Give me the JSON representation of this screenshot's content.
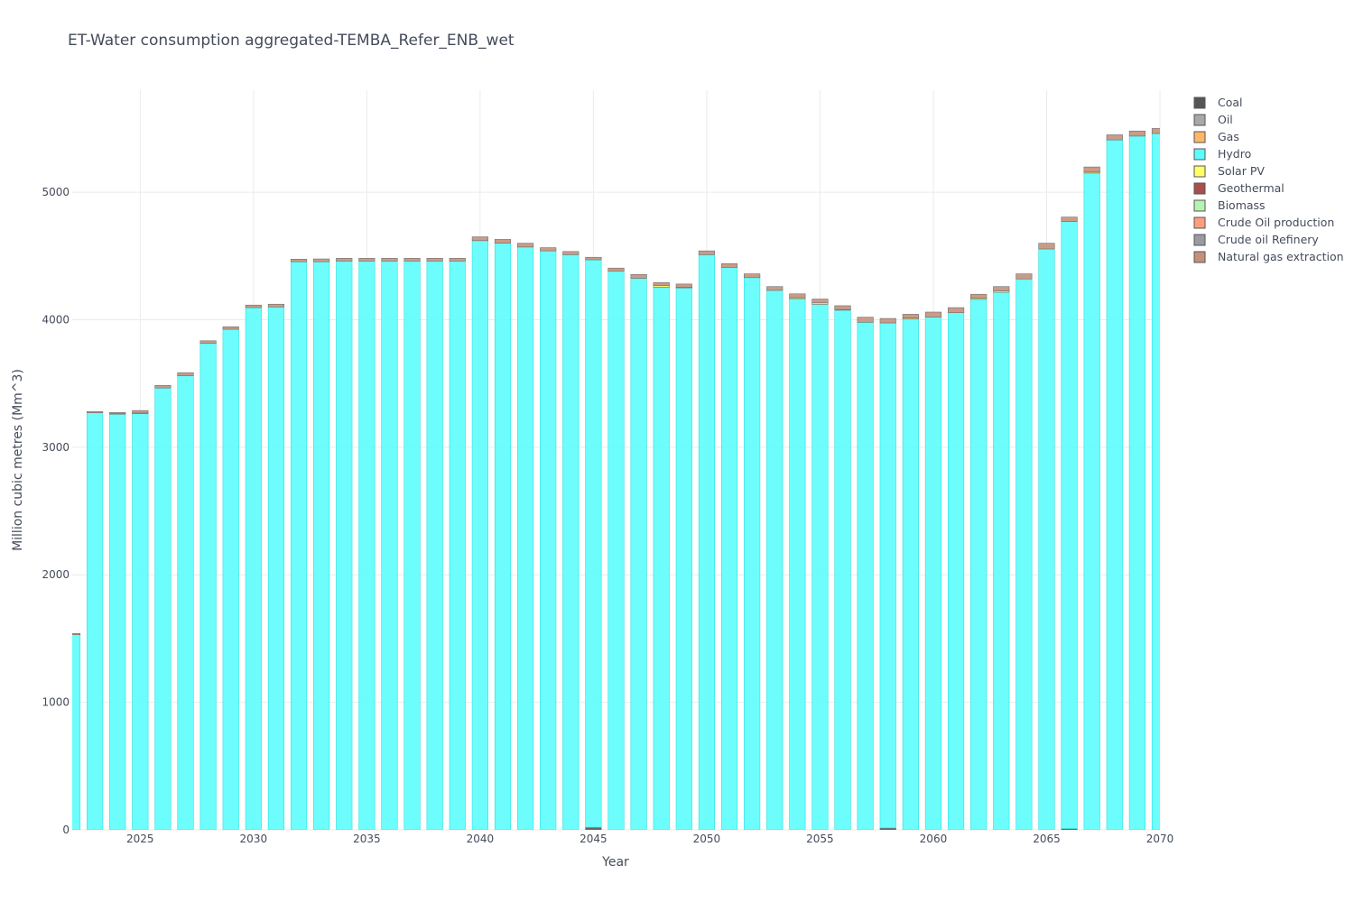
{
  "chart_data": {
    "type": "bar",
    "stacked": true,
    "title": "ET-Water consumption aggregated-TEMBA_Refer_ENB_wet",
    "xlabel": "Year",
    "ylabel": "Million cubic metres (Mm^3)",
    "xlim": [
      2022,
      2070
    ],
    "ylim": [
      0,
      5800
    ],
    "xticks": [
      2025,
      2030,
      2035,
      2040,
      2045,
      2050,
      2055,
      2060,
      2065,
      2070
    ],
    "yticks": [
      0,
      1000,
      2000,
      3000,
      4000,
      5000
    ],
    "grid": true,
    "legend_position": "right",
    "x": [
      2022,
      2023,
      2024,
      2025,
      2026,
      2027,
      2028,
      2029,
      2030,
      2031,
      2032,
      2033,
      2034,
      2035,
      2036,
      2037,
      2038,
      2039,
      2040,
      2041,
      2042,
      2043,
      2044,
      2045,
      2046,
      2047,
      2048,
      2049,
      2050,
      2051,
      2052,
      2053,
      2054,
      2055,
      2056,
      2057,
      2058,
      2059,
      2060,
      2061,
      2062,
      2063,
      2064,
      2065,
      2066,
      2067,
      2068,
      2069,
      2070
    ],
    "series": [
      {
        "name": "Coal",
        "color": "#555555",
        "values": [
          0,
          0,
          0,
          0,
          0,
          0,
          0,
          0,
          0,
          0,
          0,
          0,
          0,
          0,
          0,
          0,
          0,
          0,
          0,
          0,
          0,
          0,
          0,
          20,
          0,
          0,
          0,
          0,
          0,
          0,
          0,
          0,
          0,
          0,
          0,
          0,
          15,
          0,
          0,
          0,
          0,
          0,
          0,
          0,
          10,
          0,
          0,
          0,
          0
        ]
      },
      {
        "name": "Oil",
        "color": "#a8a8a8",
        "values": [
          0,
          0,
          0,
          0,
          0,
          0,
          0,
          0,
          0,
          0,
          0,
          0,
          0,
          0,
          0,
          0,
          0,
          0,
          0,
          0,
          0,
          0,
          0,
          0,
          0,
          0,
          0,
          0,
          0,
          0,
          0,
          0,
          0,
          0,
          0,
          0,
          0,
          0,
          0,
          0,
          0,
          0,
          0,
          0,
          0,
          0,
          0,
          0,
          0
        ]
      },
      {
        "name": "Gas",
        "color": "#ffb766",
        "values": [
          0,
          0,
          0,
          0,
          0,
          0,
          0,
          0,
          0,
          0,
          0,
          0,
          0,
          0,
          0,
          0,
          0,
          0,
          0,
          0,
          0,
          0,
          0,
          0,
          0,
          0,
          0,
          0,
          0,
          0,
          0,
          0,
          0,
          0,
          0,
          0,
          0,
          0,
          0,
          0,
          0,
          0,
          0,
          0,
          0,
          0,
          0,
          0,
          0
        ]
      },
      {
        "name": "Hydro",
        "color": "#5dfdfd",
        "values": [
          1530,
          3270,
          3260,
          3265,
          3465,
          3560,
          3815,
          3925,
          4095,
          4100,
          4455,
          4455,
          4460,
          4460,
          4460,
          4460,
          4460,
          4460,
          4620,
          4600,
          4570,
          4540,
          4510,
          4450,
          4380,
          4325,
          4255,
          4250,
          4510,
          4410,
          4330,
          4230,
          4165,
          4120,
          4075,
          3980,
          3960,
          4005,
          4020,
          4055,
          4160,
          4215,
          4320,
          4555,
          4760,
          5150,
          5410,
          5440,
          5460
        ]
      },
      {
        "name": "Solar PV",
        "color": "#ffff66",
        "values": [
          0,
          0,
          3,
          3,
          0,
          0,
          0,
          0,
          0,
          0,
          0,
          0,
          0,
          0,
          0,
          0,
          0,
          0,
          0,
          0,
          0,
          0,
          0,
          0,
          0,
          0,
          12,
          5,
          0,
          0,
          0,
          0,
          8,
          12,
          5,
          0,
          0,
          8,
          0,
          0,
          10,
          10,
          0,
          0,
          0,
          8,
          0,
          0,
          0
        ]
      },
      {
        "name": "Geothermal",
        "color": "#a94d4d",
        "values": [
          0,
          0,
          0,
          0,
          0,
          0,
          0,
          0,
          0,
          0,
          0,
          0,
          0,
          0,
          0,
          0,
          0,
          0,
          0,
          0,
          0,
          0,
          0,
          0,
          0,
          0,
          0,
          0,
          0,
          0,
          0,
          0,
          0,
          0,
          0,
          0,
          0,
          0,
          0,
          0,
          0,
          0,
          0,
          0,
          0,
          0,
          0,
          0,
          0
        ]
      },
      {
        "name": "Biomass",
        "color": "#b8f2b0",
        "values": [
          0,
          0,
          0,
          0,
          0,
          0,
          0,
          0,
          0,
          0,
          0,
          0,
          0,
          0,
          0,
          0,
          0,
          0,
          0,
          0,
          0,
          0,
          0,
          0,
          0,
          0,
          0,
          0,
          0,
          0,
          0,
          0,
          0,
          0,
          0,
          0,
          0,
          0,
          0,
          0,
          0,
          0,
          0,
          0,
          0,
          0,
          0,
          0,
          0
        ]
      },
      {
        "name": "Crude Oil production",
        "color": "#ff9e7e",
        "values": [
          0,
          0,
          0,
          0,
          0,
          0,
          0,
          0,
          0,
          0,
          0,
          0,
          0,
          0,
          0,
          0,
          0,
          0,
          0,
          0,
          0,
          0,
          0,
          0,
          0,
          0,
          0,
          0,
          0,
          0,
          0,
          0,
          0,
          0,
          0,
          0,
          0,
          0,
          0,
          0,
          0,
          0,
          0,
          0,
          0,
          0,
          0,
          0,
          0
        ]
      },
      {
        "name": "Crude oil Refinery",
        "color": "#9a9aa4",
        "values": [
          0,
          0,
          0,
          0,
          0,
          0,
          0,
          0,
          0,
          0,
          0,
          0,
          0,
          0,
          0,
          0,
          0,
          0,
          0,
          0,
          0,
          0,
          0,
          0,
          0,
          0,
          0,
          0,
          0,
          0,
          0,
          0,
          0,
          0,
          0,
          0,
          0,
          0,
          0,
          0,
          0,
          0,
          0,
          0,
          0,
          0,
          0,
          0,
          0
        ]
      },
      {
        "name": "Natural gas extraction",
        "color": "#c4907a",
        "values": [
          10,
          10,
          10,
          20,
          20,
          25,
          20,
          20,
          20,
          22,
          20,
          22,
          22,
          22,
          22,
          22,
          22,
          22,
          30,
          30,
          30,
          25,
          25,
          20,
          25,
          30,
          25,
          25,
          30,
          30,
          30,
          30,
          30,
          30,
          30,
          40,
          35,
          30,
          40,
          40,
          30,
          35,
          40,
          45,
          35,
          40,
          40,
          40,
          40
        ]
      }
    ]
  }
}
